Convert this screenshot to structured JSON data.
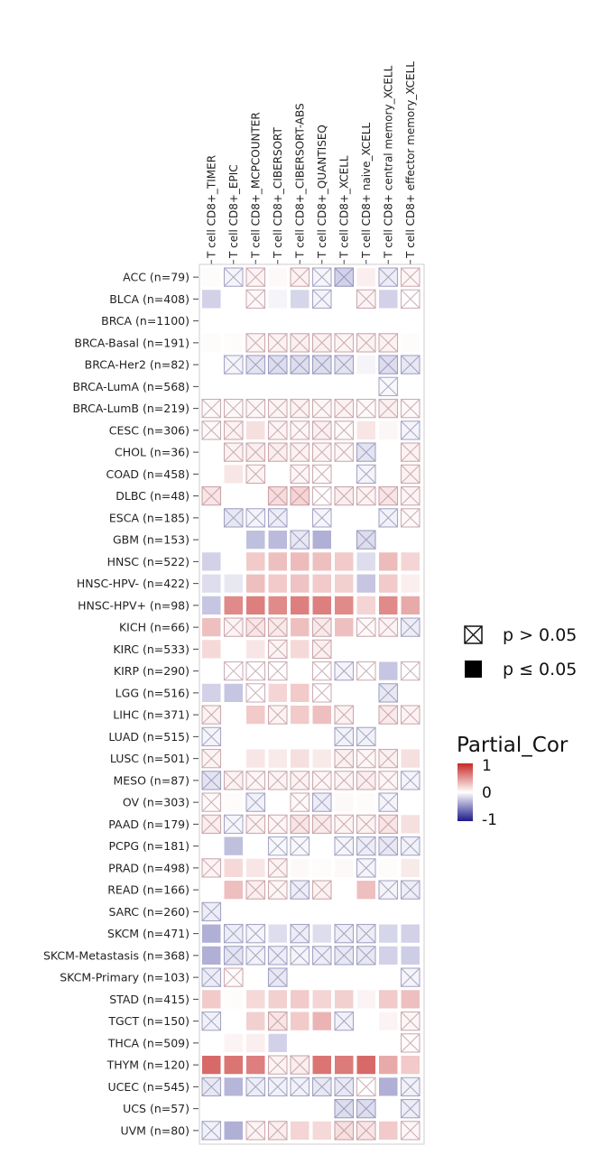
{
  "chart_data": {
    "type": "heatmap",
    "title": "",
    "columns": [
      "T cell CD8+_TIMER",
      "T cell CD8+_EPIC",
      "T cell CD8+_MCPCOUNTER",
      "T cell CD8+_CIBERSORT",
      "T cell CD8+_CIBERSORT-ABS",
      "T cell CD8+_QUANTISEQ",
      "T cell CD8+_XCELL",
      "T cell CD8+ naive_XCELL",
      "T cell CD8+ central memory_XCELL",
      "T cell CD8+ effector memory_XCELL"
    ],
    "rows": [
      "ACC (n=79)",
      "BLCA (n=408)",
      "BRCA (n=1100)",
      "BRCA-Basal (n=191)",
      "BRCA-Her2 (n=82)",
      "BRCA-LumA (n=568)",
      "BRCA-LumB (n=219)",
      "CESC (n=306)",
      "CHOL (n=36)",
      "COAD (n=458)",
      "DLBC (n=48)",
      "ESCA (n=185)",
      "GBM (n=153)",
      "HNSC (n=522)",
      "HNSC-HPV- (n=422)",
      "HNSC-HPV+ (n=98)",
      "KICH (n=66)",
      "KIRC (n=533)",
      "KIRP (n=290)",
      "LGG (n=516)",
      "LIHC (n=371)",
      "LUAD (n=515)",
      "LUSC (n=501)",
      "MESO (n=87)",
      "OV (n=303)",
      "PAAD (n=179)",
      "PCPG (n=181)",
      "PRAD (n=498)",
      "READ (n=166)",
      "SARC (n=260)",
      "SKCM (n=471)",
      "SKCM-Metastasis (n=368)",
      "SKCM-Primary (n=103)",
      "STAD (n=415)",
      "TGCT (n=150)",
      "THCA (n=509)",
      "THYM (n=120)",
      "UCEC (n=545)",
      "UCS (n=57)",
      "UVM (n=80)"
    ],
    "values": [
      [
        0.02,
        -0.05,
        0.05,
        0.03,
        0.06,
        -0.04,
        -0.2,
        0.08,
        -0.08,
        0.04
      ],
      [
        -0.2,
        0.0,
        0.03,
        -0.05,
        -0.18,
        -0.05,
        0.0,
        0.05,
        -0.2,
        0.0
      ],
      [
        0.0,
        0.0,
        0.0,
        0.0,
        0.0,
        0.0,
        0.0,
        0.0,
        0.0,
        0.0
      ],
      [
        0.02,
        0.02,
        0.05,
        0.06,
        0.07,
        0.07,
        0.05,
        0.06,
        0.06,
        0.02
      ],
      [
        0.0,
        -0.05,
        -0.12,
        -0.15,
        -0.15,
        -0.15,
        -0.12,
        -0.05,
        -0.15,
        -0.1
      ],
      [
        0.0,
        0.0,
        0.0,
        0.0,
        0.0,
        0.0,
        0.0,
        0.0,
        -0.03,
        0.0
      ],
      [
        0.03,
        0.03,
        0.04,
        0.05,
        0.06,
        0.04,
        0.06,
        0.03,
        0.07,
        0.03
      ],
      [
        0.03,
        0.06,
        0.15,
        0.05,
        0.04,
        0.07,
        0.03,
        0.12,
        0.04,
        -0.05
      ],
      [
        0.0,
        0.06,
        0.08,
        0.08,
        0.06,
        0.05,
        0.04,
        -0.12,
        0.0,
        0.06
      ],
      [
        0.0,
        0.12,
        0.05,
        0.0,
        0.04,
        0.02,
        0.0,
        -0.05,
        0.0,
        0.06
      ],
      [
        0.12,
        0.0,
        0.0,
        0.16,
        0.2,
        0.0,
        0.08,
        0.06,
        0.12,
        0.05
      ],
      [
        0.0,
        -0.1,
        -0.05,
        -0.08,
        0.0,
        -0.04,
        0.0,
        0.0,
        -0.06,
        0.03
      ],
      [
        0.0,
        0.0,
        -0.28,
        -0.3,
        -0.1,
        -0.35,
        0.0,
        -0.15,
        0.0,
        0.0
      ],
      [
        -0.2,
        0.0,
        0.25,
        0.3,
        0.32,
        0.3,
        0.25,
        -0.15,
        0.32,
        0.2
      ],
      [
        -0.15,
        -0.1,
        0.3,
        0.25,
        0.28,
        0.25,
        0.22,
        -0.25,
        0.25,
        0.08
      ],
      [
        -0.25,
        0.55,
        0.6,
        0.55,
        0.6,
        0.6,
        0.55,
        0.2,
        0.55,
        0.4
      ],
      [
        0.3,
        0.05,
        0.12,
        0.1,
        0.3,
        0.1,
        0.3,
        0.03,
        0.05,
        -0.08
      ],
      [
        0.18,
        0.0,
        0.12,
        0.05,
        0.18,
        0.07,
        0.0,
        0.0,
        0.0,
        0.0
      ],
      [
        0.0,
        0.0,
        0.0,
        0.0,
        0.0,
        0.0,
        -0.05,
        0.0,
        -0.25,
        0.0
      ],
      [
        -0.2,
        -0.25,
        0.0,
        0.2,
        0.25,
        0.0,
        0.0,
        0.0,
        -0.1,
        0.0
      ],
      [
        0.06,
        0.0,
        0.25,
        0.05,
        0.25,
        0.3,
        0.06,
        0.0,
        0.1,
        0.05
      ],
      [
        -0.05,
        0.0,
        0.0,
        0.0,
        0.0,
        0.0,
        -0.06,
        -0.06,
        0.0,
        0.0
      ],
      [
        0.05,
        0.0,
        0.12,
        0.1,
        0.15,
        0.1,
        0.07,
        0.04,
        0.07,
        0.15
      ],
      [
        -0.12,
        0.06,
        0.04,
        0.05,
        0.06,
        0.04,
        0.05,
        0.08,
        0.04,
        -0.05
      ],
      [
        0.03,
        0.02,
        -0.06,
        0.0,
        0.03,
        -0.08,
        0.03,
        0.02,
        -0.05,
        0.0
      ],
      [
        0.08,
        -0.04,
        0.06,
        0.04,
        0.12,
        0.1,
        0.05,
        0.06,
        0.12,
        0.15
      ],
      [
        0.0,
        -0.28,
        0.0,
        -0.03,
        -0.03,
        0.0,
        -0.05,
        -0.08,
        -0.1,
        -0.06
      ],
      [
        0.05,
        0.18,
        0.12,
        0.05,
        0.03,
        0.02,
        0.03,
        -0.05,
        0.02,
        0.1
      ],
      [
        0.0,
        0.3,
        0.08,
        0.04,
        -0.08,
        0.06,
        0.0,
        0.3,
        -0.05,
        -0.08
      ],
      [
        -0.08,
        0.0,
        0.0,
        0.0,
        0.0,
        0.0,
        0.0,
        0.0,
        0.0,
        0.0
      ],
      [
        -0.35,
        -0.08,
        -0.05,
        -0.15,
        -0.08,
        -0.15,
        -0.08,
        -0.08,
        -0.18,
        -0.2
      ],
      [
        -0.35,
        -0.12,
        -0.06,
        -0.08,
        -0.05,
        -0.08,
        -0.1,
        -0.1,
        -0.2,
        -0.22
      ],
      [
        -0.08,
        0.02,
        0.0,
        -0.1,
        0.0,
        0.0,
        0.0,
        0.0,
        0.0,
        -0.05
      ],
      [
        0.25,
        0.02,
        0.18,
        0.22,
        0.25,
        0.2,
        0.22,
        0.05,
        0.25,
        0.3
      ],
      [
        -0.06,
        0.0,
        0.22,
        0.12,
        0.25,
        0.35,
        -0.06,
        0.0,
        0.05,
        0.04
      ],
      [
        0.0,
        0.05,
        0.08,
        -0.2,
        0.0,
        0.0,
        0.0,
        0.0,
        0.0,
        0.02
      ],
      [
        0.7,
        0.65,
        0.6,
        0.05,
        0.08,
        0.65,
        0.62,
        0.7,
        0.4,
        0.25
      ],
      [
        -0.1,
        -0.32,
        -0.08,
        -0.06,
        -0.06,
        -0.1,
        -0.1,
        0.0,
        -0.35,
        -0.06
      ],
      [
        0.0,
        0.0,
        0.0,
        0.0,
        0.0,
        0.0,
        -0.15,
        -0.15,
        0.0,
        -0.08
      ],
      [
        -0.06,
        -0.35,
        0.05,
        0.08,
        0.2,
        0.18,
        0.15,
        0.12,
        0.25,
        0.04
      ]
    ],
    "not_significant": [
      [
        0,
        1,
        1,
        0,
        1,
        1,
        1,
        0,
        1,
        1
      ],
      [
        0,
        0,
        1,
        0,
        0,
        1,
        0,
        1,
        0,
        1
      ],
      [
        0,
        0,
        0,
        0,
        0,
        0,
        0,
        0,
        0,
        0
      ],
      [
        0,
        0,
        1,
        1,
        1,
        1,
        1,
        1,
        1,
        0
      ],
      [
        0,
        1,
        1,
        1,
        1,
        1,
        1,
        0,
        1,
        1
      ],
      [
        0,
        0,
        0,
        0,
        0,
        0,
        0,
        0,
        1,
        0
      ],
      [
        1,
        1,
        1,
        1,
        1,
        1,
        1,
        1,
        1,
        1
      ],
      [
        1,
        1,
        0,
        1,
        1,
        1,
        1,
        0,
        0,
        1
      ],
      [
        0,
        1,
        1,
        1,
        1,
        1,
        1,
        1,
        0,
        1
      ],
      [
        0,
        0,
        1,
        0,
        1,
        1,
        0,
        1,
        0,
        1
      ],
      [
        1,
        0,
        0,
        1,
        1,
        1,
        1,
        1,
        1,
        1
      ],
      [
        0,
        1,
        1,
        1,
        0,
        1,
        0,
        0,
        1,
        1
      ],
      [
        0,
        0,
        0,
        0,
        1,
        0,
        0,
        1,
        0,
        0
      ],
      [
        0,
        0,
        0,
        0,
        0,
        0,
        0,
        0,
        0,
        0
      ],
      [
        0,
        0,
        0,
        0,
        0,
        0,
        0,
        0,
        0,
        0
      ],
      [
        0,
        0,
        0,
        0,
        0,
        0,
        0,
        0,
        0,
        0
      ],
      [
        0,
        1,
        1,
        1,
        0,
        1,
        0,
        1,
        1,
        1
      ],
      [
        0,
        0,
        0,
        1,
        0,
        1,
        0,
        0,
        0,
        0
      ],
      [
        0,
        1,
        1,
        1,
        0,
        1,
        1,
        1,
        0,
        1
      ],
      [
        0,
        0,
        1,
        0,
        0,
        1,
        0,
        0,
        1,
        0
      ],
      [
        1,
        0,
        0,
        1,
        0,
        0,
        1,
        0,
        1,
        1
      ],
      [
        1,
        0,
        0,
        0,
        0,
        0,
        1,
        1,
        0,
        0
      ],
      [
        1,
        0,
        0,
        0,
        0,
        0,
        1,
        1,
        1,
        0
      ],
      [
        1,
        1,
        1,
        1,
        1,
        1,
        1,
        1,
        1,
        1
      ],
      [
        1,
        0,
        1,
        0,
        1,
        1,
        0,
        0,
        1,
        0
      ],
      [
        1,
        1,
        1,
        1,
        1,
        1,
        1,
        1,
        1,
        0
      ],
      [
        0,
        0,
        0,
        1,
        1,
        0,
        1,
        1,
        1,
        1
      ],
      [
        1,
        0,
        0,
        1,
        0,
        0,
        0,
        1,
        0,
        0
      ],
      [
        0,
        0,
        1,
        1,
        1,
        1,
        0,
        0,
        1,
        1
      ],
      [
        1,
        0,
        0,
        0,
        0,
        0,
        0,
        0,
        0,
        0
      ],
      [
        0,
        1,
        1,
        0,
        1,
        0,
        1,
        1,
        0,
        0
      ],
      [
        0,
        1,
        1,
        1,
        1,
        1,
        1,
        1,
        0,
        0
      ],
      [
        1,
        1,
        0,
        1,
        0,
        0,
        0,
        0,
        0,
        1
      ],
      [
        0,
        0,
        0,
        0,
        0,
        0,
        0,
        0,
        0,
        0
      ],
      [
        1,
        0,
        0,
        1,
        0,
        0,
        1,
        0,
        0,
        1
      ],
      [
        0,
        0,
        0,
        0,
        0,
        0,
        0,
        0,
        0,
        1
      ],
      [
        0,
        0,
        0,
        1,
        1,
        0,
        0,
        0,
        0,
        0
      ],
      [
        1,
        0,
        1,
        1,
        1,
        1,
        1,
        1,
        0,
        1
      ],
      [
        0,
        0,
        0,
        0,
        0,
        0,
        1,
        1,
        0,
        1
      ],
      [
        1,
        0,
        1,
        1,
        0,
        0,
        1,
        1,
        0,
        1
      ]
    ],
    "significance_legend": [
      {
        "symbol": "crossed-box",
        "label": "p > 0.05"
      },
      {
        "symbol": "filled-box",
        "label": "p ≤ 0.05"
      }
    ],
    "colorbar": {
      "title": "Partial_Cor",
      "ticks": [
        "1",
        "0",
        "-1"
      ],
      "range": [
        -1,
        1
      ],
      "colors": {
        "low": "#1c1a8a",
        "mid": "#ffffff",
        "high": "#c62a28"
      }
    }
  }
}
